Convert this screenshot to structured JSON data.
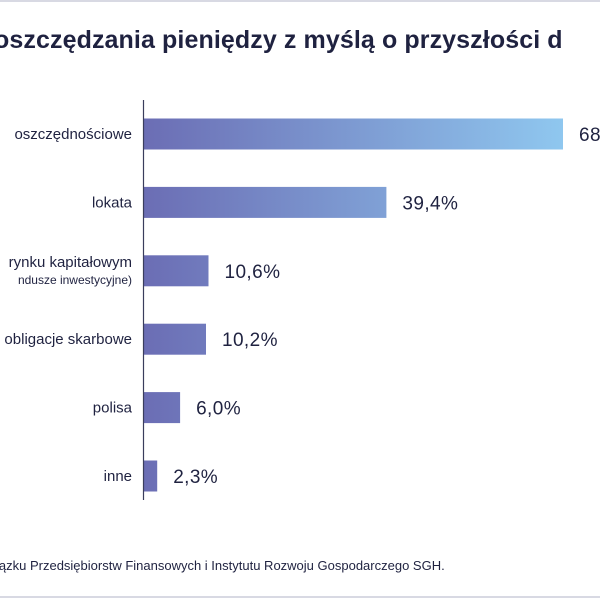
{
  "chart_data": {
    "type": "bar",
    "orientation": "horizontal",
    "title": "oszczędzania pieniędzy z myślą o przyszłości d",
    "categories": [
      "oszczędnościowe",
      "lokata",
      "rynku kapitałowym",
      "obligacje skarbowe",
      "polisa",
      "inne"
    ],
    "category_sublabels": [
      "",
      "",
      "ndusze inwestycyjne)",
      "",
      "",
      ""
    ],
    "values": [
      68,
      39.4,
      10.6,
      10.2,
      6.0,
      2.3
    ],
    "value_labels": [
      "68",
      "39,4%",
      "10,6%",
      "10,2%",
      "6,0%",
      "2,3%"
    ],
    "xlim": [
      0,
      70
    ],
    "grid": false,
    "legend": "none",
    "colors": {
      "bar_start": "#6b6db4",
      "bar_end": "#8fc7ef",
      "axis": "#3a3d5c",
      "text": "#1f2240"
    },
    "source": "iązku Przedsiębiorstw Finansowych i Instytutu Rozwoju Gospodarczego SGH."
  }
}
